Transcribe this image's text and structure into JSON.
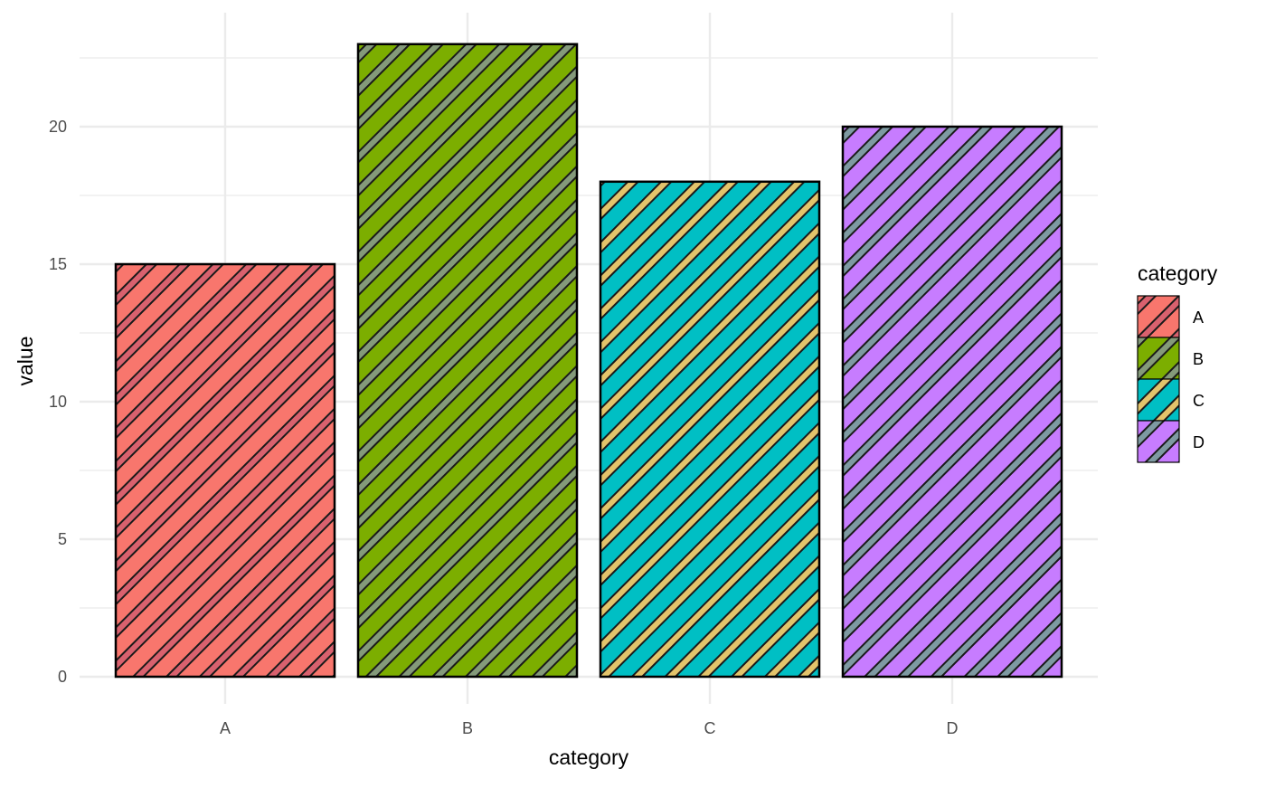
{
  "chart_data": {
    "type": "bar",
    "categories": [
      "A",
      "B",
      "C",
      "D"
    ],
    "values": [
      15,
      23,
      18,
      20
    ],
    "xlabel": "category",
    "ylabel": "value",
    "ylim": [
      0,
      23
    ],
    "y_ticks": [
      0,
      5,
      10,
      15,
      20
    ],
    "grid": true,
    "pattern": "diagonal stripes",
    "legend": {
      "title": "category",
      "placement": "right",
      "entries": [
        "A",
        "B",
        "C",
        "D"
      ]
    },
    "colors": {
      "A": {
        "fill": "#F8766D",
        "stripe": "#D9616E"
      },
      "B": {
        "fill": "#7CAE00",
        "stripe": "#849A7A"
      },
      "C": {
        "fill": "#00BFC4",
        "stripe": "#E3C46B"
      },
      "D": {
        "fill": "#C77CFF",
        "stripe": "#7E9AA2"
      }
    },
    "grid_color": "#EBEBEB",
    "bar_outline": "#000000"
  }
}
